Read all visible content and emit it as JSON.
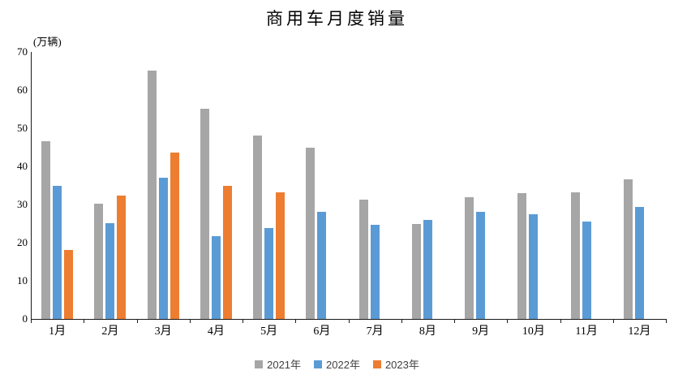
{
  "title": "商用车月度销量",
  "unit_label": "(万辆)",
  "legend": [
    {
      "label": "2021年",
      "color": "#A6A6A6"
    },
    {
      "label": "2022年",
      "color": "#5B9BD5"
    },
    {
      "label": "2023年",
      "color": "#ED7D31"
    }
  ],
  "chart_data": {
    "type": "bar",
    "title": "商用车月度销量",
    "unit": "万辆",
    "categories": [
      "1月",
      "2月",
      "3月",
      "4月",
      "5月",
      "6月",
      "7月",
      "8月",
      "9月",
      "10月",
      "11月",
      "12月"
    ],
    "series": [
      {
        "name": "2021年",
        "color": "#A6A6A6",
        "values": [
          46.5,
          30.2,
          65.2,
          55.2,
          48.1,
          44.9,
          31.2,
          24.9,
          31.9,
          32.9,
          33.2,
          36.5
        ]
      },
      {
        "name": "2022年",
        "color": "#5B9BD5",
        "values": [
          34.9,
          25.1,
          37.0,
          21.6,
          23.8,
          28.1,
          24.6,
          25.9,
          28.0,
          27.4,
          25.6,
          29.3
        ]
      },
      {
        "name": "2023年",
        "color": "#ED7D31",
        "values": [
          18.0,
          32.4,
          43.7,
          35.0,
          33.1,
          null,
          null,
          null,
          null,
          null,
          null,
          null
        ]
      }
    ],
    "ylabel": "(万辆)",
    "ylim": [
      0,
      70
    ],
    "yticks": [
      0,
      10,
      20,
      30,
      40,
      50,
      60,
      70
    ],
    "grid": false,
    "legend_position": "bottom"
  }
}
